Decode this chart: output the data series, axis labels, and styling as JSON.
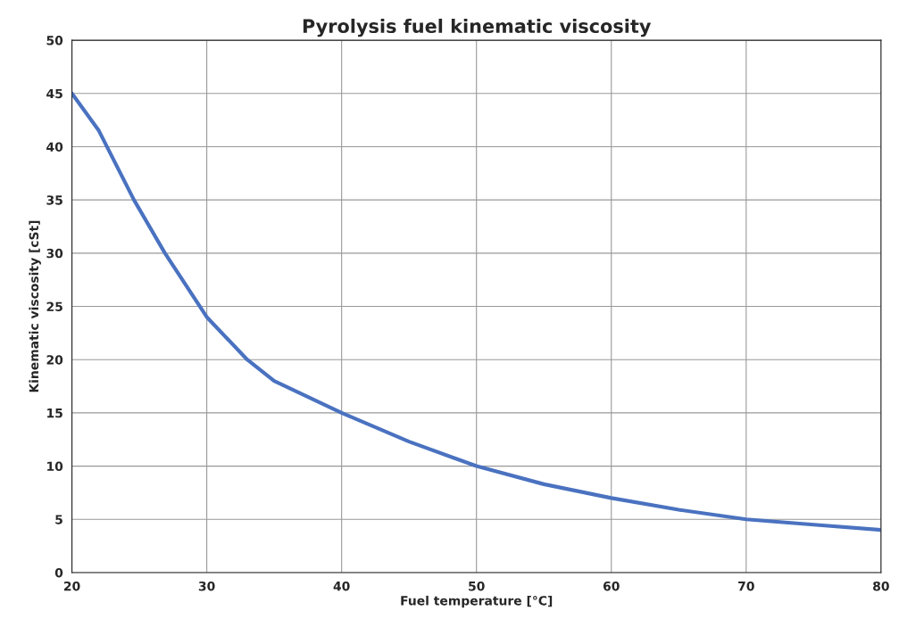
{
  "chart_data": {
    "type": "line",
    "title": "Pyrolysis fuel kinematic viscosity",
    "xlabel": "Fuel temperature [°C]",
    "ylabel": "Kinematic viscosity [cSt]",
    "x": [
      20,
      22,
      24.6,
      26.9,
      30,
      33,
      35,
      40,
      45,
      50,
      55,
      60,
      65,
      70,
      75,
      80
    ],
    "series": [
      {
        "color": "#4a72c0",
        "values": [
          45,
          41.5,
          35,
          30,
          24,
          20,
          18,
          15,
          12.3,
          10,
          8.3,
          7,
          5.9,
          5,
          4.5,
          4
        ]
      }
    ],
    "xlim": [
      20,
      80
    ],
    "xticks": [
      20,
      30,
      40,
      50,
      60,
      70,
      80
    ],
    "ylim": [
      0,
      50
    ],
    "yticks": [
      0,
      5,
      10,
      15,
      20,
      25,
      30,
      35,
      40,
      45,
      50
    ],
    "grid": true,
    "marker": "none",
    "line_style": "solid"
  }
}
